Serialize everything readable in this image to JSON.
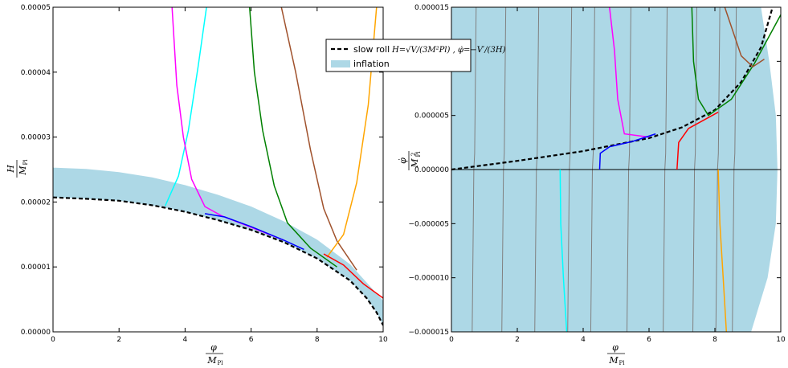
{
  "chart_data": [
    {
      "type": "line",
      "xlabel": "φ / M_Pl",
      "ylabel": "H / M_Pl",
      "xlim": [
        0,
        10
      ],
      "ylim": [
        0,
        5e-05
      ],
      "xticks": [
        0,
        2,
        4,
        6,
        8,
        10
      ],
      "yticks": [
        0,
        1e-05,
        2e-05,
        3e-05,
        4e-05,
        5e-05
      ],
      "ytick_labels": [
        "0.00000",
        "0.00001",
        "0.00002",
        "0.00003",
        "0.00004",
        "0.00005"
      ],
      "xtick_labels": [
        "0",
        "2",
        "4",
        "6",
        "8",
        "10"
      ],
      "grid": false,
      "inflation_region": {
        "color": "#add8e6",
        "upper": [
          [
            0,
            2.53e-05
          ],
          [
            1,
            2.51e-05
          ],
          [
            2,
            2.46e-05
          ],
          [
            3,
            2.38e-05
          ],
          [
            4,
            2.26e-05
          ],
          [
            5,
            2.11e-05
          ],
          [
            6,
            1.93e-05
          ],
          [
            7,
            1.7e-05
          ],
          [
            8,
            1.42e-05
          ],
          [
            9,
            1.04e-05
          ],
          [
            10,
            4.8e-06
          ]
        ],
        "lower": [
          [
            0,
            2.07e-05
          ],
          [
            1,
            2.05e-05
          ],
          [
            2,
            2.02e-05
          ],
          [
            3,
            1.95e-05
          ],
          [
            4,
            1.85e-05
          ],
          [
            5,
            1.72e-05
          ],
          [
            6,
            1.57e-05
          ],
          [
            7,
            1.38e-05
          ],
          [
            8,
            1.13e-05
          ],
          [
            9,
            7.9e-06
          ],
          [
            9.5,
            5.2e-06
          ],
          [
            9.8,
            3e-06
          ],
          [
            10,
            1e-06
          ]
        ]
      },
      "series": [
        {
          "color": "#000000",
          "dashed": true,
          "points": [
            [
              0,
              2.07e-05
            ],
            [
              1,
              2.05e-05
            ],
            [
              2,
              2.02e-05
            ],
            [
              3,
              1.95e-05
            ],
            [
              4,
              1.85e-05
            ],
            [
              5,
              1.72e-05
            ],
            [
              6,
              1.57e-05
            ],
            [
              7,
              1.38e-05
            ],
            [
              8,
              1.13e-05
            ],
            [
              9,
              7.9e-06
            ],
            [
              9.5,
              5.2e-06
            ],
            [
              9.8,
              3e-06
            ],
            [
              10,
              1e-06
            ]
          ]
        },
        {
          "color": "#00ffff",
          "points": [
            [
              3.4,
              1.94e-05
            ],
            [
              3.8,
              2.4e-05
            ],
            [
              4.1,
              3.1e-05
            ],
            [
              4.4,
              4.1e-05
            ],
            [
              4.65,
              5e-05
            ]
          ]
        },
        {
          "color": "#ff00ff",
          "points": [
            [
              3.6,
              5.04e-05
            ],
            [
              3.75,
              3.8e-05
            ],
            [
              3.95,
              3e-05
            ],
            [
              4.2,
              2.35e-05
            ],
            [
              4.6,
              1.93e-05
            ],
            [
              5.1,
              1.79e-05
            ],
            [
              6,
              1.61e-05
            ],
            [
              7,
              1.41e-05
            ]
          ]
        },
        {
          "color": "#0000ff",
          "points": [
            [
              4.6,
              1.82e-05
            ],
            [
              5.2,
              1.77e-05
            ],
            [
              6,
              1.62e-05
            ],
            [
              7,
              1.41e-05
            ],
            [
              7.6,
              1.27e-05
            ]
          ]
        },
        {
          "color": "#008000",
          "points": [
            [
              5.95,
              5.04e-05
            ],
            [
              6.1,
              4e-05
            ],
            [
              6.35,
              3.1e-05
            ],
            [
              6.7,
              2.25e-05
            ],
            [
              7.1,
              1.68e-05
            ],
            [
              7.8,
              1.29e-05
            ],
            [
              8.6,
              1e-05
            ]
          ]
        },
        {
          "color": "#a0522d",
          "points": [
            [
              6.9,
              5.04e-05
            ],
            [
              7.35,
              4e-05
            ],
            [
              7.8,
              2.8e-05
            ],
            [
              8.2,
              1.9e-05
            ],
            [
              8.6,
              1.4e-05
            ],
            [
              9.2,
              9.5e-06
            ]
          ]
        },
        {
          "color": "#ffa500",
          "points": [
            [
              8.3,
              1.15e-05
            ],
            [
              8.8,
              1.5e-05
            ],
            [
              9.2,
              2.3e-05
            ],
            [
              9.55,
              3.5e-05
            ],
            [
              9.8,
              5e-05
            ]
          ]
        },
        {
          "color": "#ff0000",
          "points": [
            [
              8.2,
              1.2e-05
            ],
            [
              8.8,
              1.03e-05
            ],
            [
              9.4,
              7.4e-06
            ],
            [
              10,
              5.2e-06
            ]
          ]
        }
      ]
    },
    {
      "type": "line",
      "xlabel": "φ / M_Pl",
      "ylabel": "φ̇ / M_Pl²",
      "xlim": [
        0,
        10
      ],
      "ylim": [
        -1.5e-05,
        1.5e-05
      ],
      "xticks": [
        0,
        2,
        4,
        6,
        8,
        10
      ],
      "yticks": [
        -1.5e-05,
        -1e-05,
        -5e-06,
        0,
        5e-06,
        1e-05,
        1.5e-05
      ],
      "ytick_labels": [
        "−0.000015",
        "−0.000010",
        "−0.000005",
        "0.000000",
        "0.000005",
        "0.000010",
        "0.000015"
      ],
      "xtick_labels": [
        "0",
        "2",
        "4",
        "6",
        "8",
        "10"
      ],
      "grid": false,
      "inflation_region": {
        "color": "#add8e6",
        "right_boundary": [
          [
            9.1,
            -1.5e-05
          ],
          [
            9.6,
            -1e-05
          ],
          [
            9.85,
            -5e-06
          ],
          [
            9.9,
            0
          ],
          [
            9.85,
            5e-06
          ],
          [
            9.65,
            1e-05
          ],
          [
            9.4,
            1.5e-05
          ]
        ]
      },
      "series": [
        {
          "color": "#000000",
          "dashed": true,
          "points": [
            [
              0,
              0
            ],
            [
              2,
              8e-07
            ],
            [
              4,
              1.7e-06
            ],
            [
              5,
              2.3e-06
            ],
            [
              6,
              2.9e-06
            ],
            [
              7,
              3.9e-06
            ],
            [
              8,
              5.5e-06
            ],
            [
              8.8,
              8.1e-06
            ],
            [
              9.4,
              1.13e-05
            ],
            [
              9.75,
              1.5e-05
            ]
          ]
        },
        {
          "color": "#ff00ff",
          "points": [
            [
              4.8,
              1.5e-05
            ],
            [
              4.95,
              1.1e-05
            ],
            [
              5.05,
              6.5e-06
            ],
            [
              5.25,
              3.3e-06
            ],
            [
              6,
              3e-06
            ]
          ]
        },
        {
          "color": "#008000",
          "points": [
            [
              7.3,
              1.5e-05
            ],
            [
              7.35,
              1e-05
            ],
            [
              7.5,
              6.5e-06
            ],
            [
              7.8,
              5e-06
            ],
            [
              8.5,
              6.5e-06
            ],
            [
              9.2,
              9.8e-06
            ],
            [
              10,
              1.43e-05
            ]
          ]
        },
        {
          "color": "#a0522d",
          "points": [
            [
              8.3,
              1.5e-05
            ],
            [
              8.8,
              1.05e-05
            ],
            [
              9.15,
              9.5e-06
            ],
            [
              9.5,
              1.02e-05
            ]
          ]
        },
        {
          "color": "#0000ff",
          "points": [
            [
              4.5,
              0
            ],
            [
              4.52,
              1.5e-06
            ],
            [
              4.8,
              2.1e-06
            ],
            [
              5.5,
              2.6e-06
            ],
            [
              6.2,
              3.3e-06
            ]
          ]
        },
        {
          "color": "#ff0000",
          "points": [
            [
              6.85,
              0
            ],
            [
              6.9,
              2.5e-06
            ],
            [
              7.2,
              3.8e-06
            ],
            [
              8.1,
              5.3e-06
            ]
          ]
        },
        {
          "color": "#00ffff",
          "points": [
            [
              3.3,
              0
            ],
            [
              3.32,
              -5e-06
            ],
            [
              3.4,
              -1e-05
            ],
            [
              3.5,
              -1.5e-05
            ]
          ]
        },
        {
          "color": "#ffa500",
          "points": [
            [
              8.1,
              0
            ],
            [
              8.15,
              -5e-06
            ],
            [
              8.25,
              -1e-05
            ],
            [
              8.35,
              -1.5e-05
            ]
          ]
        }
      ],
      "gray_trajectories_x": [
        0.7,
        1.6,
        2.6,
        3.6,
        4.3,
        5.4,
        6.5,
        7.4,
        8.1,
        8.6
      ],
      "zero_line": true
    }
  ],
  "legend": {
    "items": [
      {
        "style": "dashed-black",
        "text": "slow roll",
        "math": "H=√V/(3M²Pl) , φ̇=−V′/(3H)"
      },
      {
        "style": "lightblue-patch",
        "text": "inflation"
      }
    ]
  }
}
